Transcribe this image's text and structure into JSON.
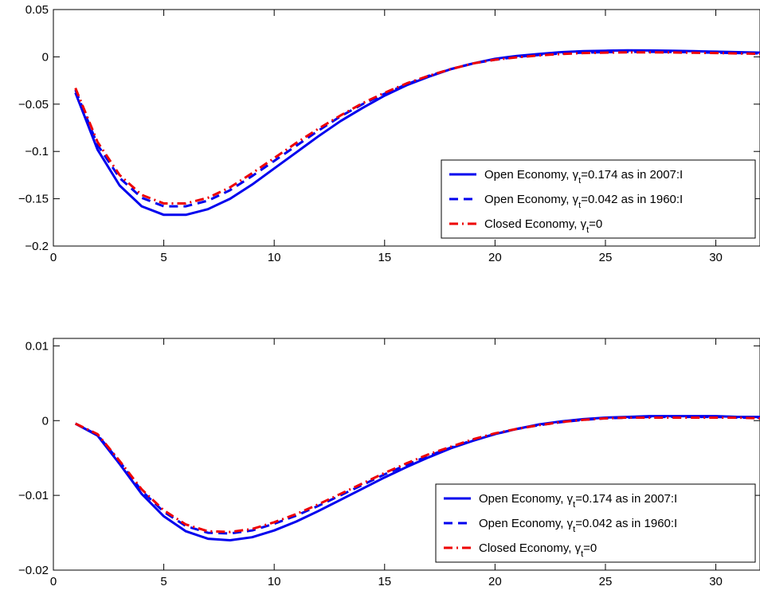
{
  "chart_data": [
    {
      "type": "line",
      "xlim": [
        0,
        32
      ],
      "ylim": [
        -0.2,
        0.05
      ],
      "xticks": [
        0,
        5,
        10,
        15,
        20,
        25,
        30
      ],
      "xtick_labels": [
        "0",
        "5",
        "10",
        "15",
        "20",
        "25",
        "30"
      ],
      "yticks": [
        -0.2,
        -0.15,
        -0.1,
        -0.05,
        0,
        0.05
      ],
      "ytick_labels": [
        "−0.2",
        "−0.15",
        "−0.1",
        "−0.05",
        "0",
        "0.05"
      ],
      "legend_position": "center-right",
      "x": [
        1,
        2,
        3,
        4,
        5,
        6,
        7,
        8,
        9,
        10,
        11,
        12,
        13,
        14,
        15,
        16,
        17,
        18,
        19,
        20,
        21,
        22,
        23,
        24,
        25,
        26,
        27,
        28,
        29,
        30,
        31,
        32
      ],
      "series": [
        {
          "legend_prefix": "Open Economy, ",
          "legend_symbol": "γ",
          "legend_subscript": "t",
          "legend_suffix": "=0.174 as in 2007:I",
          "color": "#0000ee",
          "style": "solid",
          "values": [
            -0.038,
            -0.098,
            -0.136,
            -0.158,
            -0.167,
            -0.167,
            -0.161,
            -0.15,
            -0.135,
            -0.118,
            -0.101,
            -0.084,
            -0.068,
            -0.054,
            -0.041,
            -0.03,
            -0.021,
            -0.013,
            -0.007,
            -0.002,
            0.001,
            0.003,
            0.005,
            0.006,
            0.0065,
            0.0068,
            0.0067,
            0.0064,
            0.006,
            0.0055,
            0.005,
            0.0045
          ]
        },
        {
          "legend_prefix": "Open Economy, ",
          "legend_symbol": "γ",
          "legend_subscript": "t",
          "legend_suffix": "=0.042 as in 1960:I",
          "color": "#0000ee",
          "style": "dashed",
          "values": [
            -0.035,
            -0.093,
            -0.128,
            -0.149,
            -0.158,
            -0.158,
            -0.152,
            -0.141,
            -0.126,
            -0.11,
            -0.094,
            -0.078,
            -0.063,
            -0.05,
            -0.039,
            -0.029,
            -0.02,
            -0.013,
            -0.007,
            -0.003,
            0.0,
            0.002,
            0.0035,
            0.0045,
            0.005,
            0.0053,
            0.0053,
            0.0051,
            0.0048,
            0.0044,
            0.004,
            0.0036
          ]
        },
        {
          "legend_prefix": "Closed Economy, ",
          "legend_symbol": "γ",
          "legend_subscript": "t",
          "legend_suffix": "=0",
          "color": "#ee0000",
          "style": "dashdot",
          "values": [
            -0.033,
            -0.09,
            -0.125,
            -0.146,
            -0.155,
            -0.155,
            -0.149,
            -0.138,
            -0.123,
            -0.107,
            -0.091,
            -0.076,
            -0.062,
            -0.049,
            -0.038,
            -0.028,
            -0.02,
            -0.013,
            -0.007,
            -0.003,
            -0.0005,
            0.0015,
            0.003,
            0.004,
            0.0045,
            0.0048,
            0.0048,
            0.0046,
            0.0043,
            0.004,
            0.0036,
            0.0032
          ]
        }
      ]
    },
    {
      "type": "line",
      "xlim": [
        0,
        32
      ],
      "ylim": [
        -0.02,
        0.011
      ],
      "xticks": [
        0,
        5,
        10,
        15,
        20,
        25,
        30
      ],
      "xtick_labels": [
        "0",
        "5",
        "10",
        "15",
        "20",
        "25",
        "30"
      ],
      "yticks": [
        -0.02,
        -0.01,
        0,
        0.01
      ],
      "ytick_labels": [
        "−0.02",
        "−0.01",
        "0",
        "0.01"
      ],
      "legend_position": "bottom-right",
      "x": [
        1,
        2,
        3,
        4,
        5,
        6,
        7,
        8,
        9,
        10,
        11,
        12,
        13,
        14,
        15,
        16,
        17,
        18,
        19,
        20,
        21,
        22,
        23,
        24,
        25,
        26,
        27,
        28,
        29,
        30,
        31,
        32
      ],
      "series": [
        {
          "legend_prefix": "Open Economy, ",
          "legend_symbol": "γ",
          "legend_subscript": "t",
          "legend_suffix": "=0.174 as in 2007:I",
          "color": "#0000ee",
          "style": "solid",
          "values": [
            -0.0004,
            -0.002,
            -0.0058,
            -0.0098,
            -0.0128,
            -0.0148,
            -0.0158,
            -0.016,
            -0.0156,
            -0.0147,
            -0.0135,
            -0.0121,
            -0.0106,
            -0.0091,
            -0.0076,
            -0.0062,
            -0.0049,
            -0.0037,
            -0.0027,
            -0.0018,
            -0.0011,
            -0.0005,
            -0.0001,
            0.0002,
            0.0004,
            0.0005,
            0.0006,
            0.0006,
            0.0006,
            0.0006,
            0.0005,
            0.0005
          ]
        },
        {
          "legend_prefix": "Open Economy, ",
          "legend_symbol": "γ",
          "legend_subscript": "t",
          "legend_suffix": "=0.042 as in 1960:I",
          "color": "#0000ee",
          "style": "dashed",
          "values": [
            -0.0004,
            -0.0019,
            -0.0055,
            -0.0094,
            -0.0122,
            -0.0141,
            -0.015,
            -0.0151,
            -0.0147,
            -0.0138,
            -0.0127,
            -0.0114,
            -0.01,
            -0.0086,
            -0.0072,
            -0.0059,
            -0.0047,
            -0.0036,
            -0.0026,
            -0.0018,
            -0.0011,
            -0.0006,
            -0.0002,
            0.0001,
            0.0003,
            0.0004,
            0.0005,
            0.0005,
            0.0005,
            0.0005,
            0.0004,
            0.0004
          ]
        },
        {
          "legend_prefix": "Closed Economy, ",
          "legend_symbol": "γ",
          "legend_subscript": "t",
          "legend_suffix": "=0",
          "color": "#ee0000",
          "style": "dashdot",
          "values": [
            -0.0004,
            -0.0018,
            -0.0054,
            -0.0092,
            -0.012,
            -0.0139,
            -0.0148,
            -0.0149,
            -0.0145,
            -0.0136,
            -0.0125,
            -0.0112,
            -0.0098,
            -0.0084,
            -0.007,
            -0.0057,
            -0.0045,
            -0.0035,
            -0.0025,
            -0.0017,
            -0.0011,
            -0.0006,
            -0.0002,
            0.0001,
            0.0003,
            0.0004,
            0.0004,
            0.0004,
            0.0004,
            0.0004,
            0.0004,
            0.0003
          ]
        }
      ]
    }
  ]
}
